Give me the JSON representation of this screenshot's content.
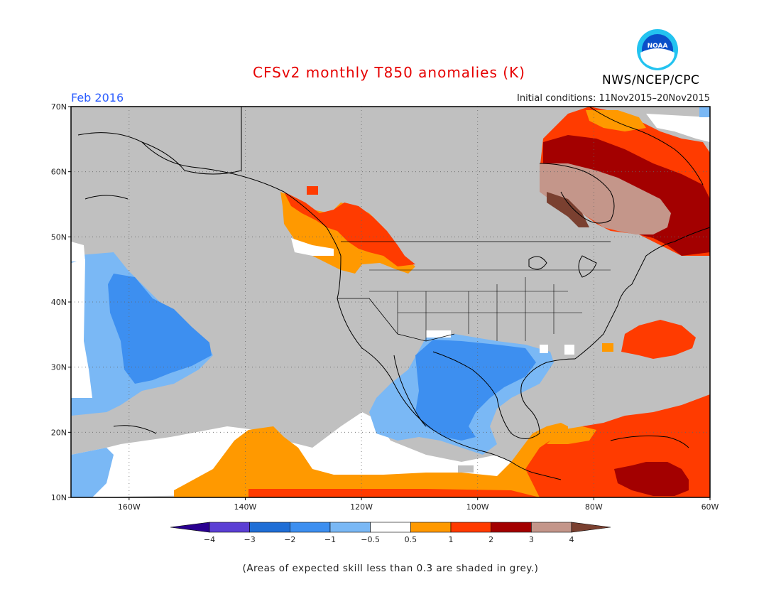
{
  "header": {
    "title": "CFSv2 monthly T850 anomalies (K)",
    "month": "Feb 2016",
    "initial_conditions": "Initial conditions: 11Nov2015–20Nov2015",
    "agency": "NWS/NCEP/CPC",
    "logo_text": "NOAA"
  },
  "map": {
    "lat_labels": [
      "70N",
      "60N",
      "50N",
      "40N",
      "30N",
      "20N",
      "10N"
    ],
    "lon_labels": [
      "160W",
      "140W",
      "120W",
      "100W",
      "80W",
      "60W"
    ],
    "lon_range": [
      -170,
      -60
    ],
    "lat_range": [
      10,
      70
    ]
  },
  "legend": {
    "tick_labels": [
      "−4",
      "−3",
      "−2",
      "−1",
      "−0.5",
      "0.5",
      "1",
      "2",
      "3",
      "4"
    ],
    "colors": [
      "#2a0090",
      "#5b3fd4",
      "#1f6ed6",
      "#3d8ff0",
      "#7ab8f5",
      "#ffffff",
      "#ff9900",
      "#ff3b00",
      "#a30000",
      "#c4968a",
      "#7a4030"
    ]
  },
  "colors": {
    "grey": "#c0c0c0",
    "title": "#e60000",
    "month": "#2a5cff"
  },
  "footer": {
    "note": "(Areas of expected skill less than 0.3 are shaded in grey.)"
  }
}
